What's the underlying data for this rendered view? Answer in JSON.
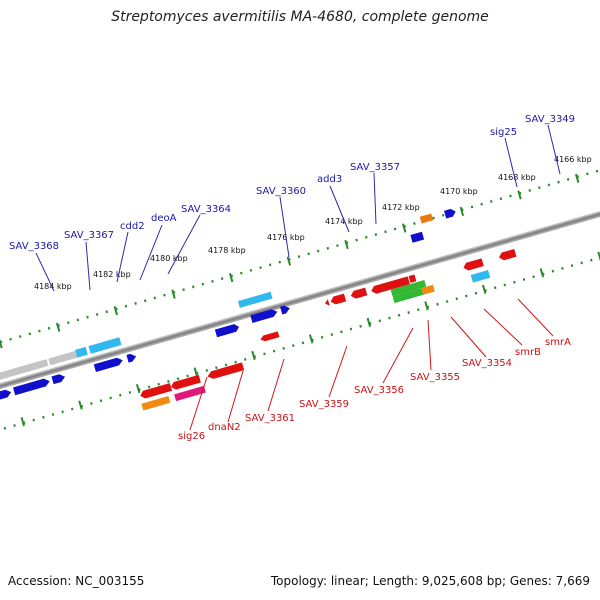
{
  "title": "Streptomyces avermitilis MA-4680, complete genome",
  "footer": {
    "accession": "Accession: NC_003155",
    "summary": "Topology: linear; Length: 9,025,608 bp; Genes: 7,669"
  },
  "colors": {
    "upper_labels": "#1a1aa6",
    "lower_labels": "#cc1111",
    "axis": "#888888",
    "ticks": "#2a8a2a"
  },
  "kbp_labels": [
    "4184 kbp",
    "4182 kbp",
    "4180 kbp",
    "4178 kbp",
    "4176 kbp",
    "4174 kbp",
    "4172 kbp",
    "4170 kbp",
    "4168 kbp",
    "4166 kbp"
  ],
  "upper_gene_labels": [
    "SAV_3368",
    "SAV_3367",
    "cdd2",
    "deoA",
    "SAV_3364",
    "SAV_3360",
    "add3",
    "SAV_3357",
    "sig25",
    "SAV_3349"
  ],
  "lower_gene_labels": [
    "sig26",
    "dnaN2",
    "SAV_3361",
    "SAV_3359",
    "SAV_3356",
    "SAV_3355",
    "SAV_3354",
    "smrB",
    "smrA"
  ]
}
